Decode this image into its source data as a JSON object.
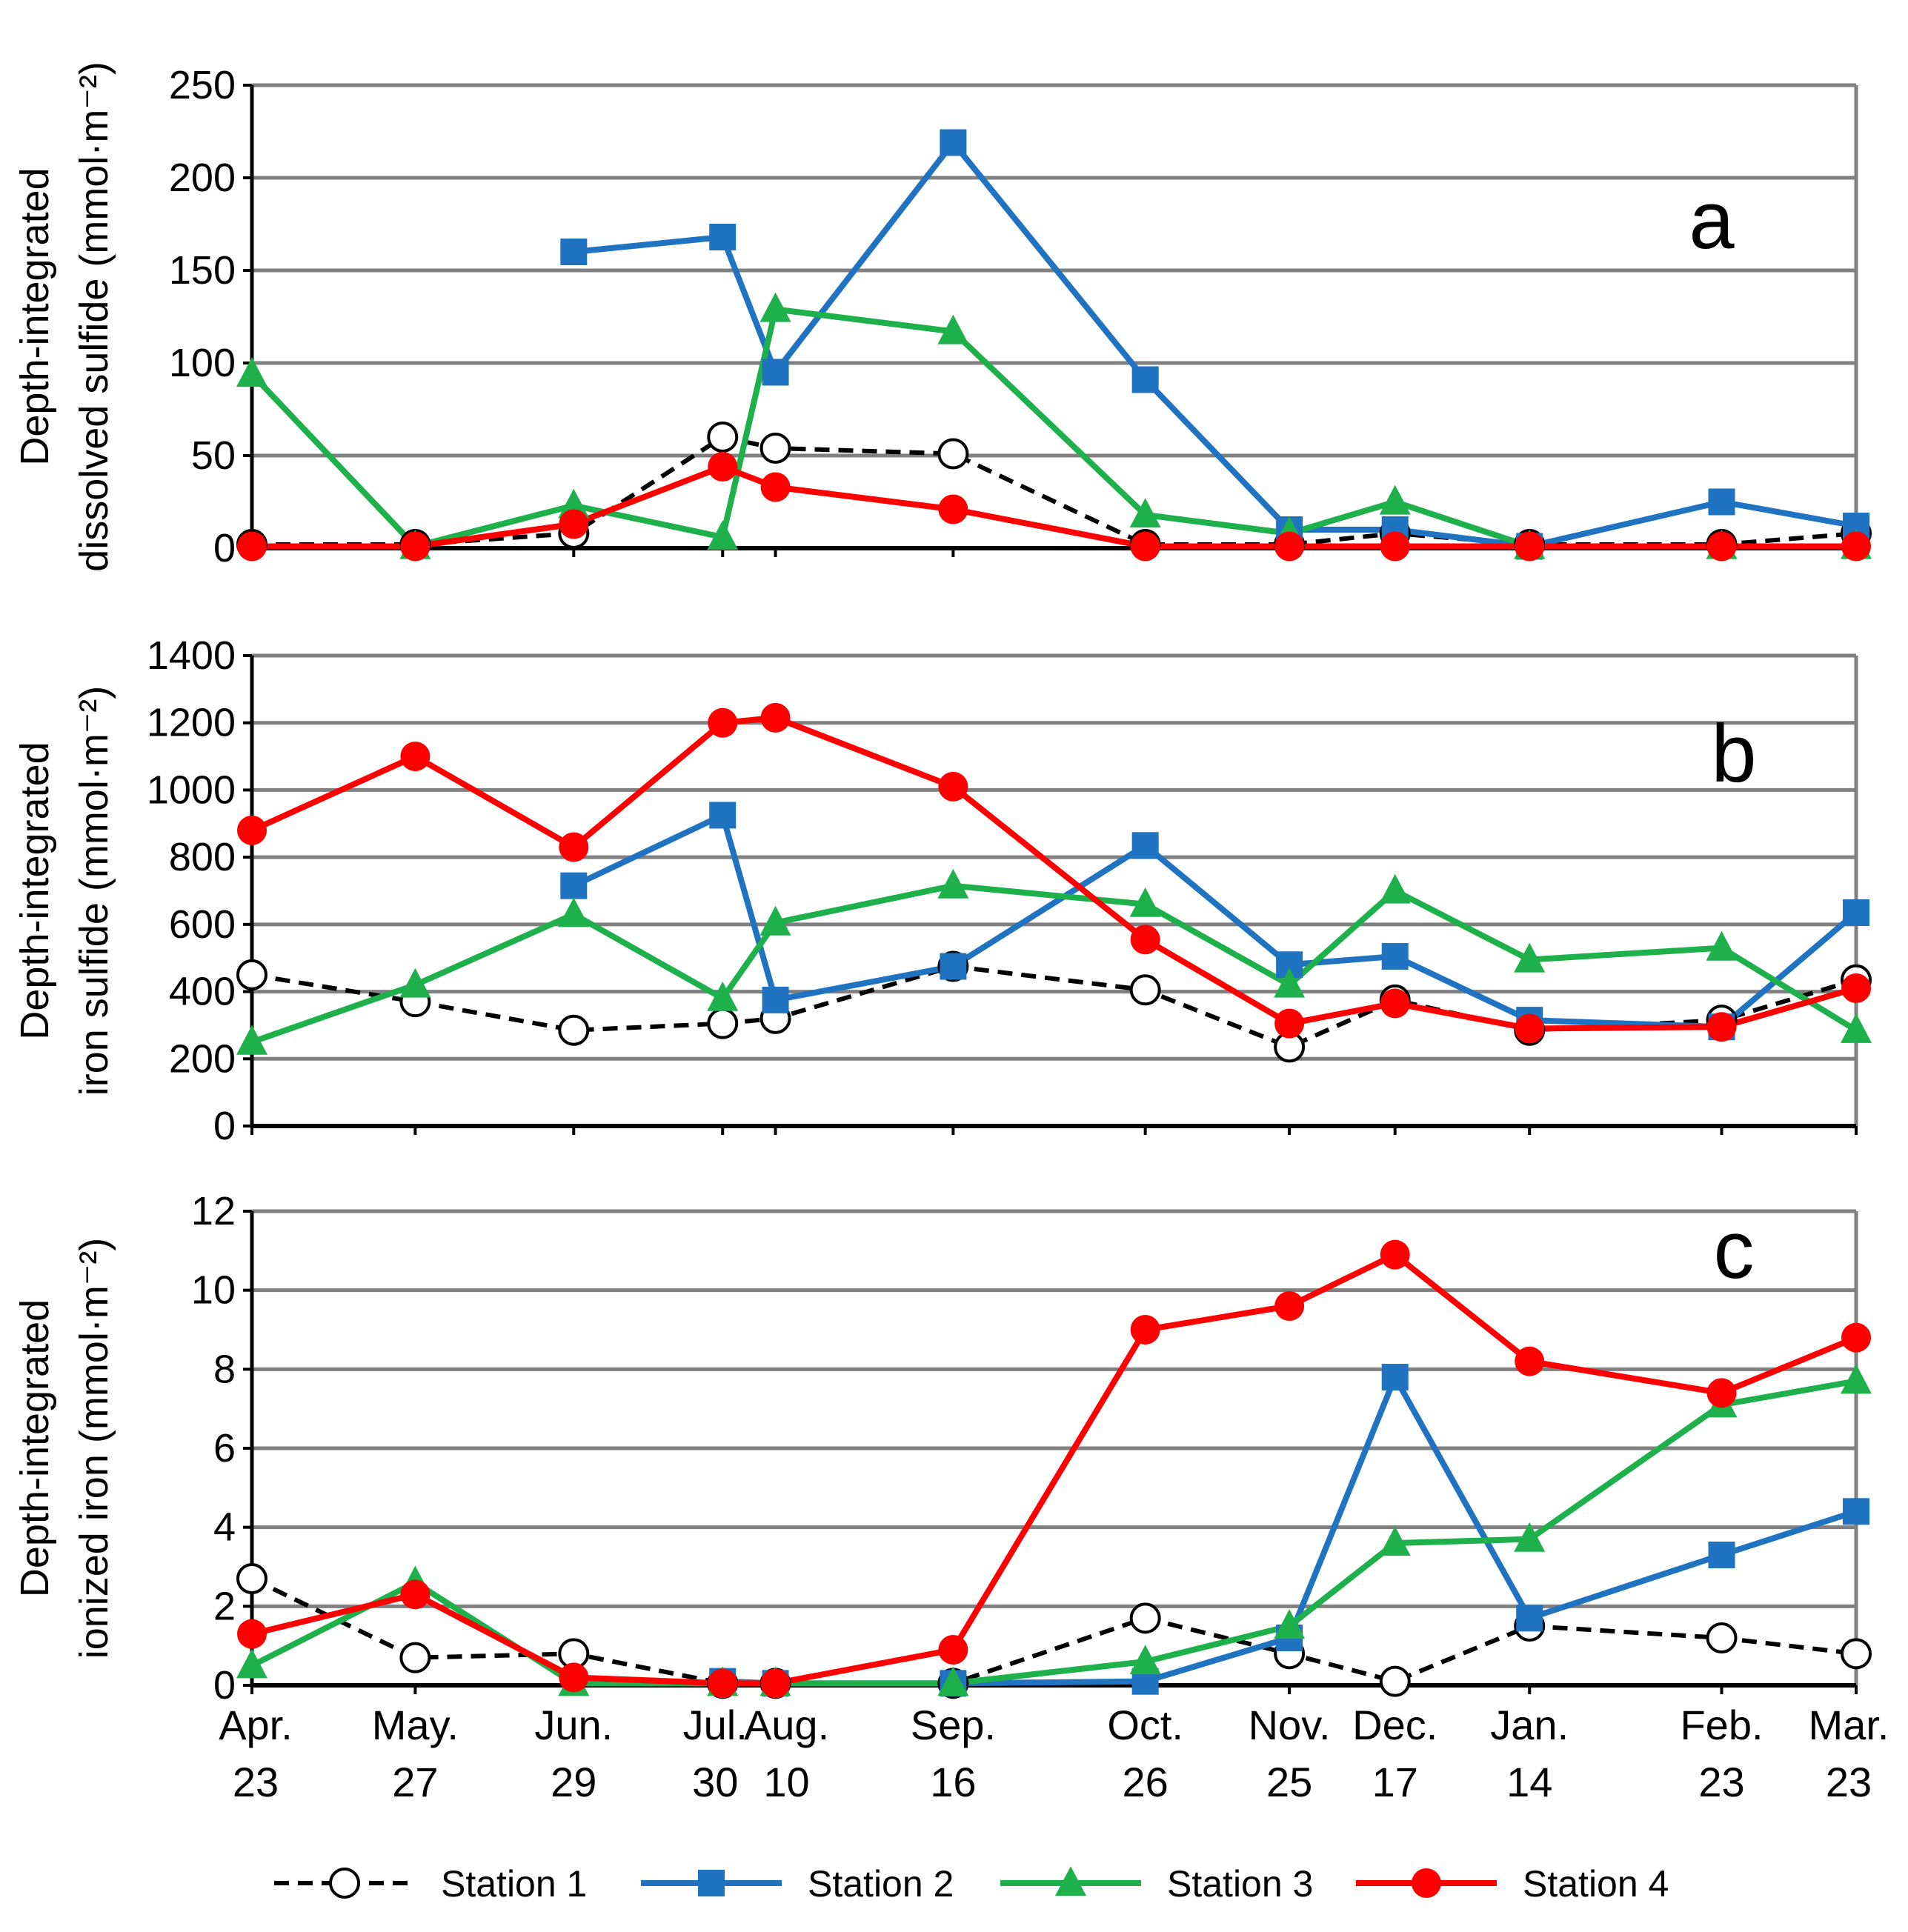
{
  "colors": {
    "station1": "#000000",
    "station2": "#1f73c0",
    "station3": "#1db04b",
    "station4": "#ff0000",
    "grid": "#808080",
    "axis": "#000000"
  },
  "chart_data": [
    {
      "type": "line",
      "panel_label": "a",
      "ylabel_line1": "Depth-integrated",
      "ylabel_line2": "dissolved sulfide (mmol·m⁻²)",
      "ylim": [
        0,
        250
      ],
      "yticks": [
        0,
        50,
        100,
        150,
        200,
        250
      ],
      "series": [
        {
          "name": "Station 1",
          "values": [
            2,
            2,
            8,
            60,
            54,
            51,
            2,
            2,
            8,
            2,
            2,
            8
          ]
        },
        {
          "name": "Station 2",
          "values": [
            null,
            null,
            160,
            168,
            95,
            219,
            91,
            10,
            10,
            1,
            25,
            12
          ]
        },
        {
          "name": "Station 3",
          "values": [
            94,
            1,
            23,
            6,
            129,
            117,
            18,
            8,
            25,
            1,
            1,
            1
          ]
        },
        {
          "name": "Station 4",
          "values": [
            1,
            1,
            13,
            44,
            33,
            21,
            1,
            1,
            1,
            1,
            1,
            1
          ]
        }
      ]
    },
    {
      "type": "line",
      "panel_label": "b",
      "ylabel_line1": "Depth-integrated",
      "ylabel_line2": "iron sulfide (mmol·m⁻²)",
      "ylim": [
        0,
        1400
      ],
      "yticks": [
        0,
        200,
        400,
        600,
        800,
        1000,
        1200,
        1400
      ],
      "series": [
        {
          "name": "Station 1",
          "values": [
            450,
            370,
            285,
            305,
            320,
            475,
            405,
            235,
            375,
            285,
            315,
            435
          ]
        },
        {
          "name": "Station 2",
          "values": [
            null,
            null,
            715,
            925,
            375,
            475,
            835,
            480,
            505,
            315,
            295,
            635
          ]
        },
        {
          "name": "Station 3",
          "values": [
            250,
            420,
            630,
            380,
            605,
            715,
            660,
            420,
            700,
            495,
            530,
            285
          ]
        },
        {
          "name": "Station 4",
          "values": [
            880,
            1100,
            830,
            1200,
            1215,
            1010,
            555,
            305,
            365,
            290,
            295,
            410
          ]
        }
      ]
    },
    {
      "type": "line",
      "panel_label": "c",
      "ylabel_line1": "Depth-integrated",
      "ylabel_line2": "ionized iron (mmol·m⁻²)",
      "ylim": [
        0,
        12
      ],
      "yticks": [
        0,
        2,
        4,
        6,
        8,
        10,
        12
      ],
      "series": [
        {
          "name": "Station 1",
          "values": [
            2.7,
            0.7,
            0.8,
            0.05,
            0.05,
            0.05,
            1.7,
            0.8,
            0.1,
            1.5,
            1.2,
            0.8
          ]
        },
        {
          "name": "Station 2",
          "values": [
            null,
            null,
            null,
            0.1,
            0.05,
            0.05,
            0.1,
            1.2,
            7.8,
            1.7,
            3.3,
            4.4
          ]
        },
        {
          "name": "Station 3",
          "values": [
            0.5,
            2.6,
            0.05,
            0.05,
            0.05,
            0.05,
            0.6,
            1.5,
            3.6,
            3.7,
            7.1,
            7.7
          ]
        },
        {
          "name": "Station 4",
          "values": [
            1.3,
            2.3,
            0.2,
            0.05,
            0.05,
            0.9,
            9.0,
            9.6,
            10.9,
            8.2,
            7.4,
            8.8
          ]
        }
      ]
    }
  ],
  "x_dates": [
    {
      "month": "Apr.",
      "day": "23",
      "pos": 0
    },
    {
      "month": "May.",
      "day": "27",
      "pos": 34
    },
    {
      "month": "Jun.",
      "day": "29",
      "pos": 67
    },
    {
      "month": "Jul.",
      "day": "30",
      "pos": 98
    },
    {
      "month": "Aug.",
      "day": "10",
      "pos": 109
    },
    {
      "month": "Sep.",
      "day": "16",
      "pos": 146
    },
    {
      "month": "Oct.",
      "day": "26",
      "pos": 186
    },
    {
      "month": "Nov.",
      "day": "25",
      "pos": 216
    },
    {
      "month": "Dec.",
      "day": "17",
      "pos": 238
    },
    {
      "month": "Jan.",
      "day": "14",
      "pos": 266
    },
    {
      "month": "Feb.",
      "day": "23",
      "pos": 306
    },
    {
      "month": "Mar.",
      "day": "23",
      "pos": 334
    }
  ],
  "legend": [
    {
      "label": "Station 1",
      "style": "dashed",
      "marker": "circle-open",
      "color": "#000000"
    },
    {
      "label": "Station 2",
      "style": "solid",
      "marker": "square",
      "color": "#1f73c0"
    },
    {
      "label": "Station 3",
      "style": "solid",
      "marker": "triangle",
      "color": "#1db04b"
    },
    {
      "label": "Station 4",
      "style": "solid",
      "marker": "circle",
      "color": "#ff0000"
    }
  ]
}
